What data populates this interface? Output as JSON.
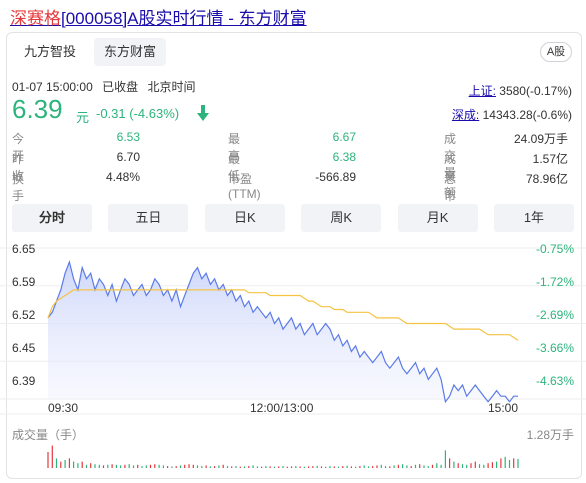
{
  "title": {
    "highlight": "深赛格",
    "rest": "[000058]A股实时行情 - 东方财富"
  },
  "tabs": [
    {
      "label": "九方智投",
      "active": false
    },
    {
      "label": "东方财富",
      "active": true
    }
  ],
  "market_badge": "A股",
  "status": {
    "time": "01-07 15:00:00",
    "state": "已收盘",
    "tz": "北京时间"
  },
  "quote": {
    "price": "6.39",
    "unit": "元",
    "change": "-0.31 (-4.63%)",
    "direction": "down",
    "color": "#2db47c"
  },
  "indices": [
    {
      "label": "上证:",
      "value": "3580(-0.17%)"
    },
    {
      "label": "深成:",
      "value": "14343.28(-0.6%)"
    }
  ],
  "stats": [
    [
      {
        "label": "今　开",
        "value": "6.53",
        "color": "#2db47c"
      },
      {
        "label": "最　高",
        "value": "6.67",
        "color": "#2db47c"
      },
      {
        "label": "成交量",
        "value": "24.09万手",
        "color": "#333"
      }
    ],
    [
      {
        "label": "昨　收",
        "value": "6.70",
        "color": "#333"
      },
      {
        "label": "最　低",
        "value": "6.38",
        "color": "#2db47c"
      },
      {
        "label": "成交额",
        "value": "1.57亿",
        "color": "#333"
      }
    ],
    [
      {
        "label": "换手率",
        "value": "4.48%",
        "color": "#333"
      },
      {
        "label": "市盈(TTM)",
        "value": "-566.89",
        "color": "#333"
      },
      {
        "label": "总市值",
        "value": "78.96亿",
        "color": "#333"
      }
    ]
  ],
  "periods": [
    {
      "label": "分时",
      "active": true
    },
    {
      "label": "五日",
      "active": false
    },
    {
      "label": "日K",
      "active": false
    },
    {
      "label": "周K",
      "active": false
    },
    {
      "label": "月K",
      "active": false
    },
    {
      "label": "1年",
      "active": false
    }
  ],
  "chart_data": {
    "type": "line",
    "y_price_ticks": [
      "6.65",
      "6.59",
      "6.52",
      "6.45",
      "6.39"
    ],
    "y_pct_ticks": [
      "-0.75%",
      "-1.72%",
      "-2.69%",
      "-3.66%",
      "-4.63%"
    ],
    "ylim": [
      6.385,
      6.655
    ],
    "x_ticks": [
      "09:30",
      "12:00/13:00",
      "15:00"
    ],
    "series": [
      {
        "values": [
          6.53,
          6.54,
          6.56,
          6.58,
          6.61,
          6.63,
          6.6,
          6.58,
          6.62,
          6.6,
          6.61,
          6.58,
          6.6,
          6.59,
          6.57,
          6.59,
          6.56,
          6.58,
          6.6,
          6.59,
          6.57,
          6.58,
          6.59,
          6.57,
          6.58,
          6.6,
          6.59,
          6.57,
          6.58,
          6.56,
          6.58,
          6.55,
          6.57,
          6.59,
          6.61,
          6.62,
          6.6,
          6.61,
          6.59,
          6.6,
          6.58,
          6.59,
          6.57,
          6.58,
          6.56,
          6.57,
          6.55,
          6.56,
          6.54,
          6.55,
          6.54,
          6.53,
          6.54,
          6.52,
          6.53,
          6.51,
          6.52,
          6.53,
          6.51,
          6.52,
          6.5,
          6.51,
          6.52,
          6.5,
          6.51,
          6.52,
          6.51,
          6.49,
          6.5,
          6.48,
          6.49,
          6.47,
          6.48,
          6.46,
          6.47,
          6.46,
          6.45,
          6.46,
          6.47,
          6.45,
          6.44,
          6.45,
          6.46,
          6.44,
          6.43,
          6.44,
          6.45,
          6.43,
          6.44,
          6.42,
          6.43,
          6.44,
          6.42,
          6.38,
          6.39,
          6.41,
          6.4,
          6.41,
          6.39,
          6.4,
          6.41,
          6.4,
          6.39,
          6.38,
          6.39,
          6.4,
          6.39,
          6.39,
          6.38,
          6.39,
          6.39
        ],
        "color": "#5b7be9"
      },
      {
        "values": [
          6.53,
          6.55,
          6.56,
          6.565,
          6.57,
          6.575,
          6.58,
          6.58,
          6.58,
          6.58,
          6.58,
          6.58,
          6.58,
          6.58,
          6.58,
          6.58,
          6.58,
          6.58,
          6.58,
          6.58,
          6.58,
          6.58,
          6.58,
          6.58,
          6.58,
          6.58,
          6.58,
          6.58,
          6.58,
          6.58,
          6.58,
          6.58,
          6.58,
          6.58,
          6.58,
          6.58,
          6.58,
          6.58,
          6.58,
          6.58,
          6.58,
          6.58,
          6.58,
          6.58,
          6.58,
          6.58,
          6.58,
          6.575,
          6.575,
          6.575,
          6.575,
          6.575,
          6.57,
          6.57,
          6.57,
          6.57,
          6.57,
          6.57,
          6.57,
          6.57,
          6.565,
          6.56,
          6.56,
          6.555,
          6.55,
          6.55,
          6.55,
          6.545,
          6.545,
          6.545,
          6.54,
          6.54,
          6.54,
          6.54,
          6.54,
          6.54,
          6.535,
          6.53,
          6.53,
          6.53,
          6.53,
          6.53,
          6.53,
          6.525,
          6.52,
          6.52,
          6.52,
          6.52,
          6.52,
          6.52,
          6.52,
          6.52,
          6.52,
          6.52,
          6.515,
          6.51,
          6.51,
          6.51,
          6.51,
          6.51,
          6.51,
          6.51,
          6.505,
          6.5,
          6.5,
          6.5,
          6.5,
          6.5,
          6.5,
          6.495,
          6.49
        ],
        "color": "#f5c242"
      }
    ],
    "volume_label": "成交量（手）",
    "volume_max_label": "1.28万手",
    "volume": [
      0.5,
      0.7,
      0.3,
      0.2,
      0.25,
      0.3,
      0.2,
      0.15,
      0.2,
      0.1,
      0.15,
      0.12,
      0.1,
      0.08,
      0.1,
      0.12,
      0.1,
      0.08,
      0.1,
      0.12,
      0.08,
      0.1,
      0.06,
      0.08,
      0.1,
      0.12,
      0.1,
      0.08,
      0.06,
      0.05,
      0.06,
      0.08,
      0.1,
      0.12,
      0.1,
      0.08,
      0.06,
      0.08,
      0.05,
      0.06,
      0.08,
      0.1,
      0.06,
      0.05,
      0.06,
      0.04,
      0.05,
      0.06,
      0.08,
      0.05,
      0.04,
      0.06,
      0.05,
      0.04,
      0.05,
      0.06,
      0.04,
      0.05,
      0.06,
      0.05,
      0.04,
      0.05,
      0.06,
      0.07,
      0.05,
      0.04,
      0.06,
      0.05,
      0.04,
      0.06,
      0.07,
      0.05,
      0.04,
      0.06,
      0.08,
      0.05,
      0.06,
      0.08,
      0.1,
      0.06,
      0.05,
      0.08,
      0.1,
      0.12,
      0.08,
      0.06,
      0.1,
      0.12,
      0.08,
      0.06,
      0.1,
      0.15,
      0.1,
      0.55,
      0.3,
      0.2,
      0.15,
      0.12,
      0.1,
      0.15,
      0.2,
      0.12,
      0.1,
      0.15,
      0.18,
      0.2,
      0.3,
      0.35,
      0.25,
      0.3,
      0.28
    ],
    "volume_colors": [
      "r",
      "r",
      "g",
      "r",
      "g",
      "r",
      "g",
      "g",
      "r",
      "g",
      "r",
      "g",
      "g",
      "r",
      "g",
      "r",
      "g",
      "g",
      "r",
      "g",
      "g",
      "r",
      "g",
      "g",
      "r",
      "r",
      "g",
      "g",
      "r",
      "g",
      "r",
      "g",
      "r",
      "r",
      "r",
      "g",
      "g",
      "r",
      "g",
      "r",
      "g",
      "r",
      "g",
      "r",
      "g",
      "r",
      "g",
      "r",
      "g",
      "g",
      "r",
      "g",
      "r",
      "g",
      "r",
      "g",
      "r",
      "r",
      "g",
      "r",
      "g",
      "r",
      "r",
      "g",
      "r",
      "g",
      "g",
      "r",
      "g",
      "r",
      "g",
      "r",
      "g",
      "r",
      "g",
      "g",
      "r",
      "r",
      "g",
      "g",
      "r",
      "g",
      "r",
      "g",
      "g",
      "r",
      "g",
      "r",
      "g",
      "g",
      "r",
      "g",
      "g",
      "g",
      "r",
      "g",
      "r",
      "g",
      "g",
      "r",
      "r",
      "g",
      "g",
      "r",
      "r",
      "g",
      "r",
      "g",
      "g",
      "r",
      "g"
    ]
  }
}
